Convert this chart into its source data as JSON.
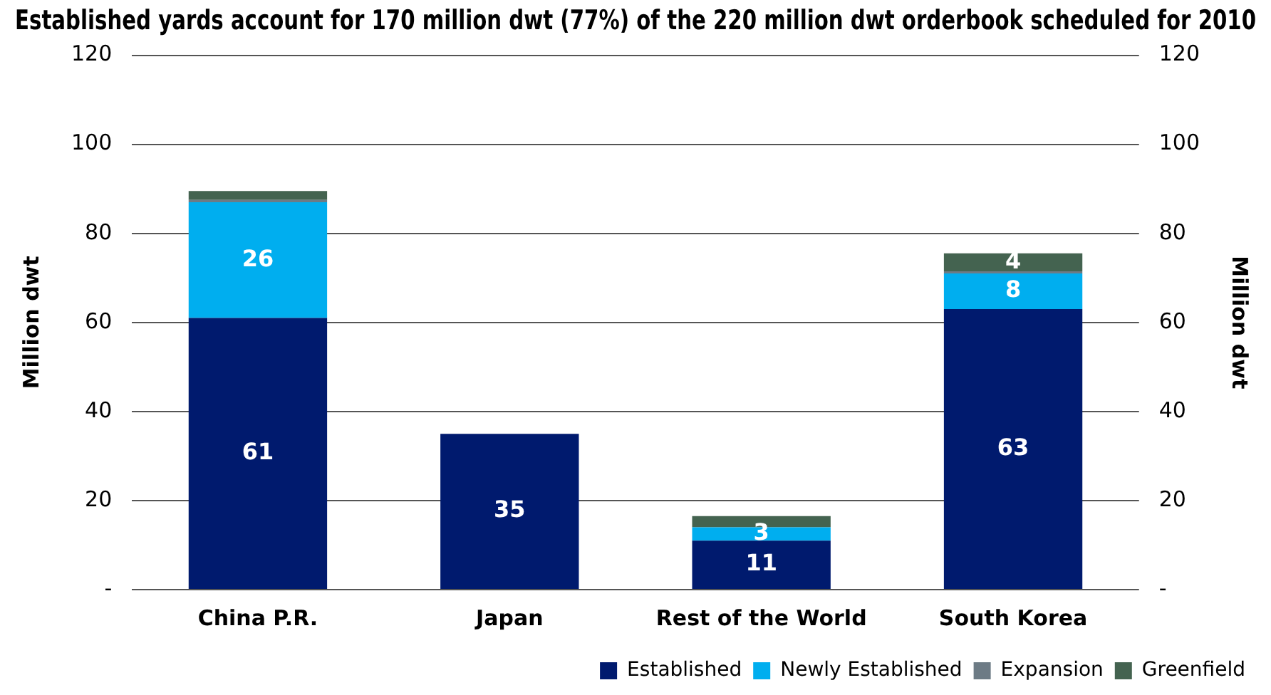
{
  "chart_data": {
    "type": "bar",
    "stacked": true,
    "title": "Established yards account for 170 million dwt (77%) of the 220 million dwt orderbook scheduled for 2010",
    "ylabel": "Million dwt",
    "y2label": "Million dwt",
    "categories": [
      "China P.R.",
      "Japan",
      "Rest of the World",
      "South Korea"
    ],
    "series": [
      {
        "name": "Established",
        "color": "#001a6e",
        "values": [
          61,
          35,
          11,
          63
        ],
        "value_labels": [
          "61",
          "35",
          "11",
          "63"
        ]
      },
      {
        "name": "Newly Established",
        "color": "#00aeef",
        "values": [
          26,
          0,
          3,
          8
        ],
        "value_labels": [
          "26",
          null,
          "3",
          "8"
        ]
      },
      {
        "name": "Expansion",
        "color": "#6d7b85",
        "values": [
          0.5,
          0,
          0,
          0.5
        ]
      },
      {
        "name": "Greenfield",
        "color": "#446350",
        "values": [
          2,
          0,
          2.5,
          4
        ],
        "value_labels": [
          null,
          null,
          null,
          "4"
        ]
      }
    ],
    "ylim": [
      0,
      120
    ],
    "yticks": [
      {
        "value": 0,
        "label": "-"
      },
      20,
      40,
      60,
      80,
      100,
      120
    ],
    "y2lim": [
      0,
      120
    ],
    "y2ticks": [
      {
        "value": 0,
        "label": "-"
      },
      20,
      40,
      60,
      80,
      100,
      120
    ],
    "grid": "y",
    "legend": "bottom right"
  }
}
